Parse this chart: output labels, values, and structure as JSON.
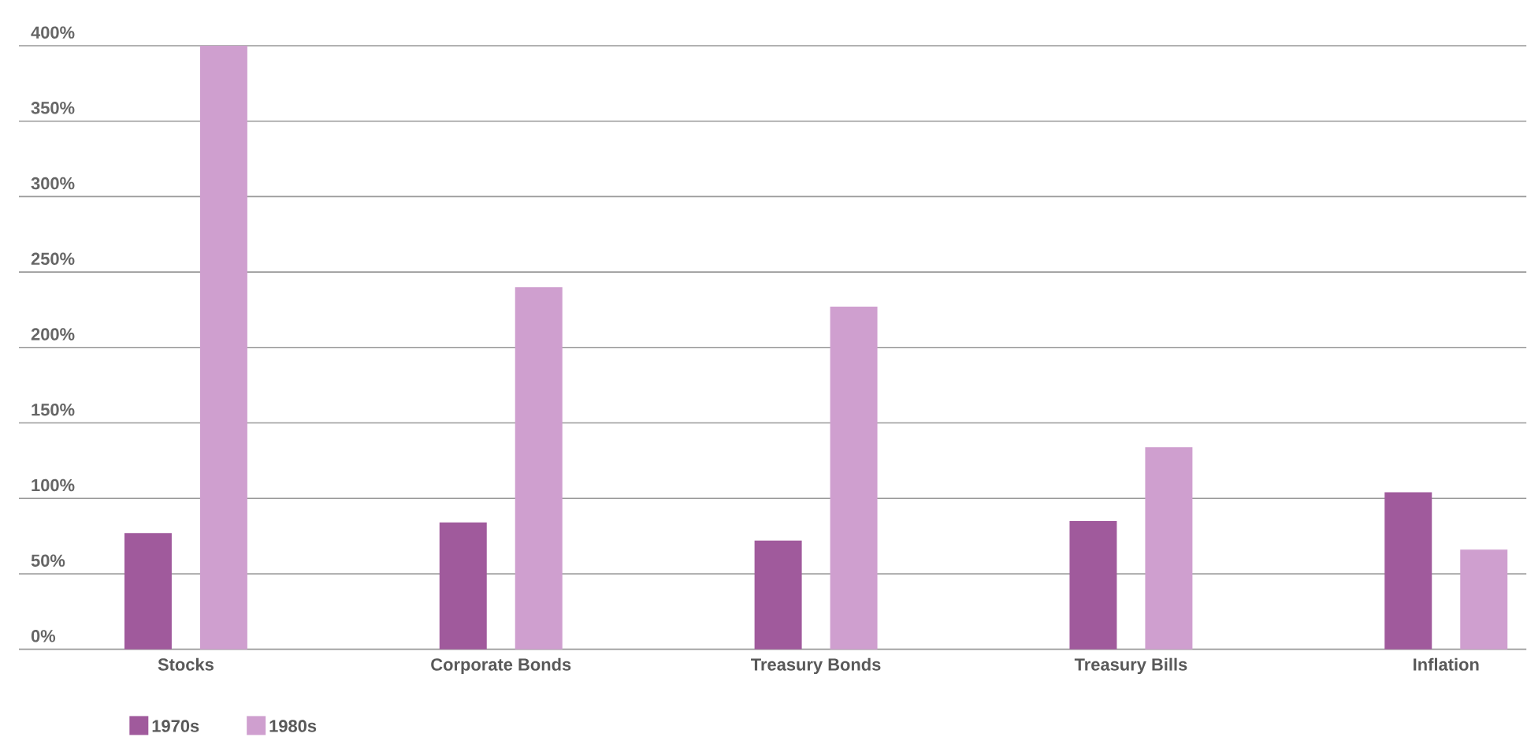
{
  "chart_data": {
    "type": "bar",
    "categories": [
      "Stocks",
      "Corporate Bonds",
      "Treasury Bonds",
      "Treasury Bills",
      "Inflation"
    ],
    "series": [
      {
        "name": "1970s",
        "color": "#a05a9c",
        "values": [
          77,
          84,
          72,
          85,
          104
        ]
      },
      {
        "name": "1980s",
        "color": "#cf9fcf",
        "values": [
          400,
          240,
          227,
          134,
          66
        ]
      }
    ],
    "ylim": [
      0,
      400
    ],
    "yticks": [
      {
        "value": 0,
        "label": "0%"
      },
      {
        "value": 50,
        "label": "50%"
      },
      {
        "value": 100,
        "label": "100%"
      },
      {
        "value": 150,
        "label": "150%"
      },
      {
        "value": 200,
        "label": "200%"
      },
      {
        "value": 250,
        "label": "250%"
      },
      {
        "value": 300,
        "label": "300%"
      },
      {
        "value": 350,
        "label": "350%"
      },
      {
        "value": 400,
        "label": "400%"
      }
    ],
    "grid": "y",
    "legend": "bottom left"
  }
}
